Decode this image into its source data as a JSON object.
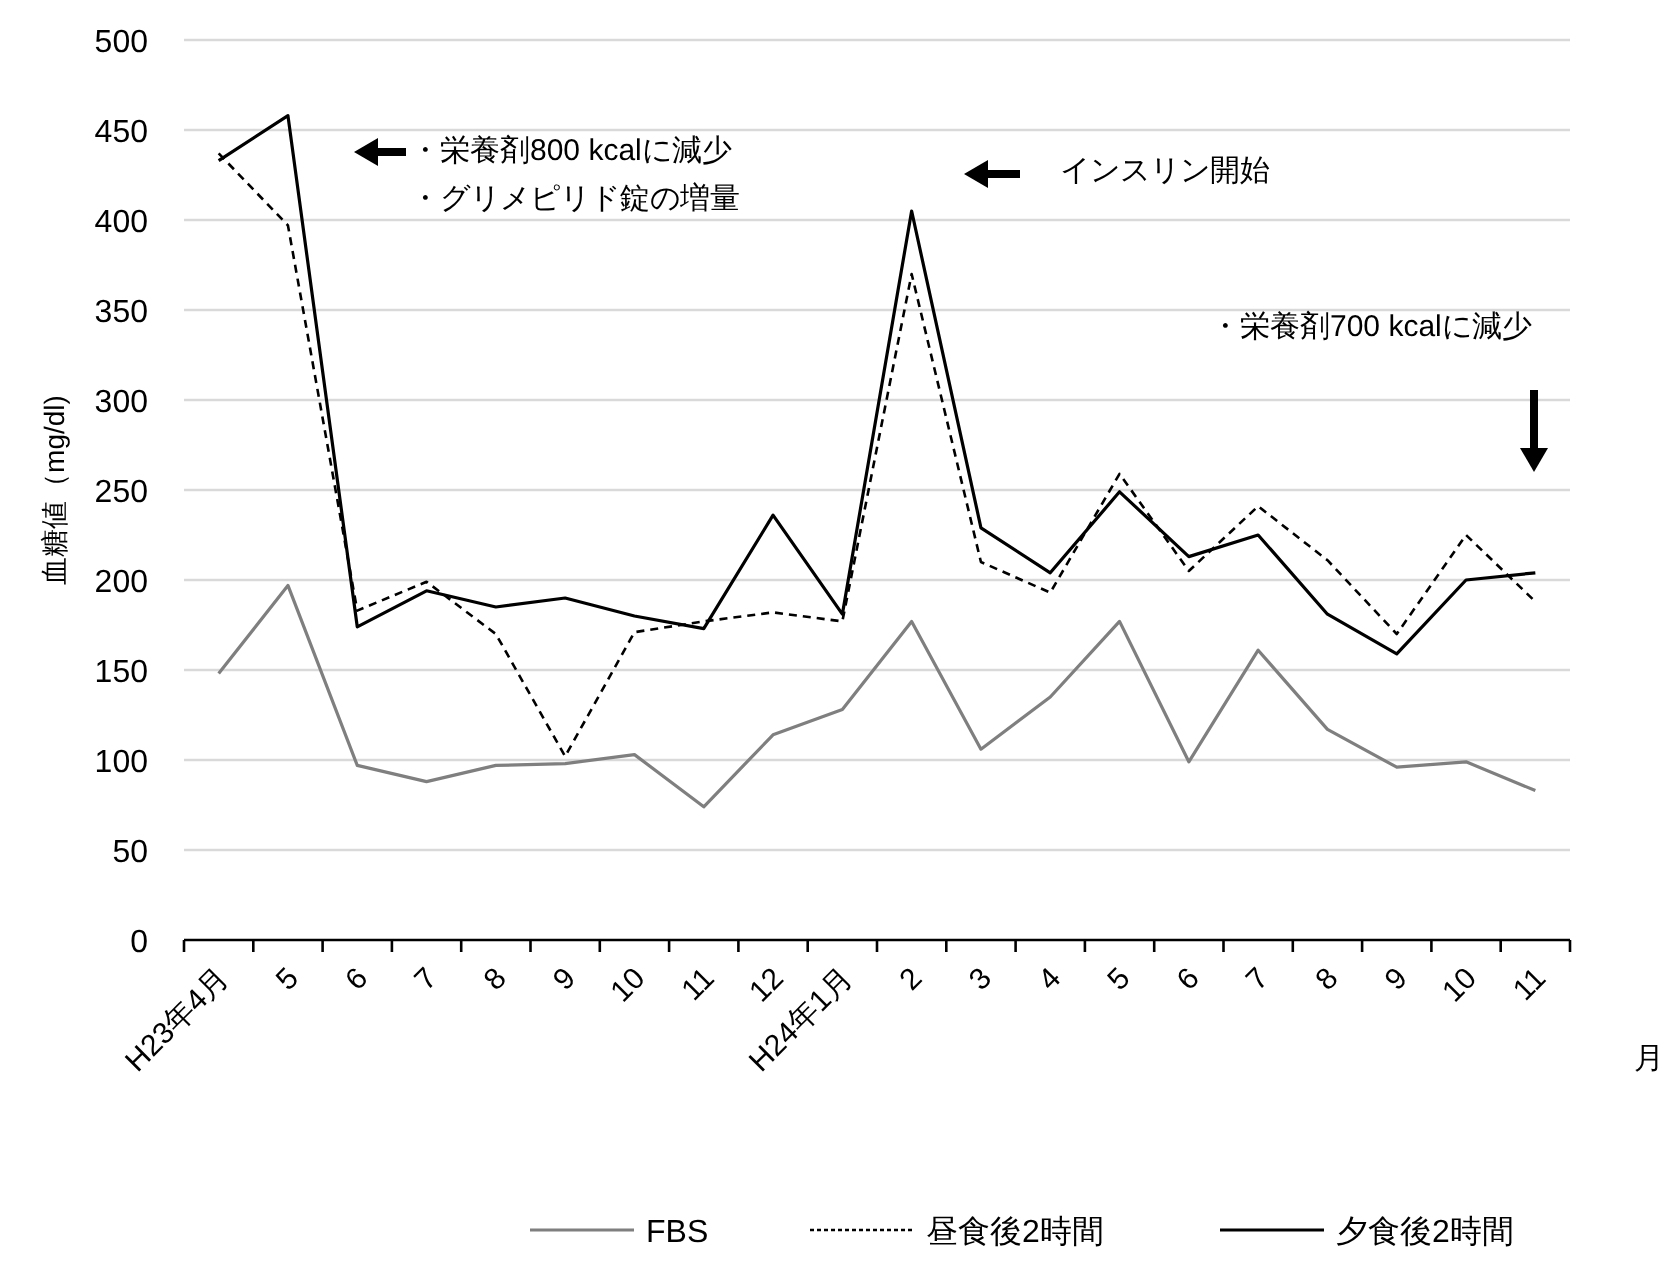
{
  "chart_data": {
    "type": "line",
    "ylabel": "血糖値（mg/dl)",
    "xlabel": "月",
    "categories": [
      "H23年4月",
      "5",
      "6",
      "7",
      "8",
      "9",
      "10",
      "11",
      "12",
      "H24年1月",
      "2",
      "3",
      "4",
      "5",
      "6",
      "7",
      "8",
      "9",
      "10",
      "11"
    ],
    "series": [
      {
        "name": "FBS",
        "color": "#7f7f7f",
        "line_style": "solid",
        "values": [
          148,
          197,
          97,
          88,
          97,
          98,
          103,
          74,
          114,
          128,
          177,
          106,
          135,
          177,
          99,
          161,
          117,
          96,
          99,
          83
        ]
      },
      {
        "name": "昼食後2時間",
        "color": "#000000",
        "line_style": "dashed",
        "values": [
          437,
          397,
          183,
          199,
          170,
          102,
          171,
          177,
          182,
          177,
          370,
          210,
          193,
          259,
          205,
          241,
          211,
          170,
          225,
          188
        ]
      },
      {
        "name": "夕食後2時間",
        "color": "#000000",
        "line_style": "solid",
        "values": [
          433,
          458,
          174,
          194,
          185,
          190,
          180,
          173,
          236,
          181,
          405,
          229,
          204,
          249,
          213,
          225,
          181,
          159,
          200,
          204
        ]
      }
    ],
    "ylim": [
      0,
      500
    ],
    "yticks": [
      0,
      50,
      100,
      150,
      200,
      250,
      300,
      350,
      400,
      450,
      500
    ],
    "grid": "y",
    "legend": "bottom",
    "marker": "none",
    "annotations": [
      "・栄養剤800 kcalに減少",
      "・グリメピリド錠の増量",
      "インスリン開始",
      "・栄養剤700 kcalに減少"
    ]
  }
}
